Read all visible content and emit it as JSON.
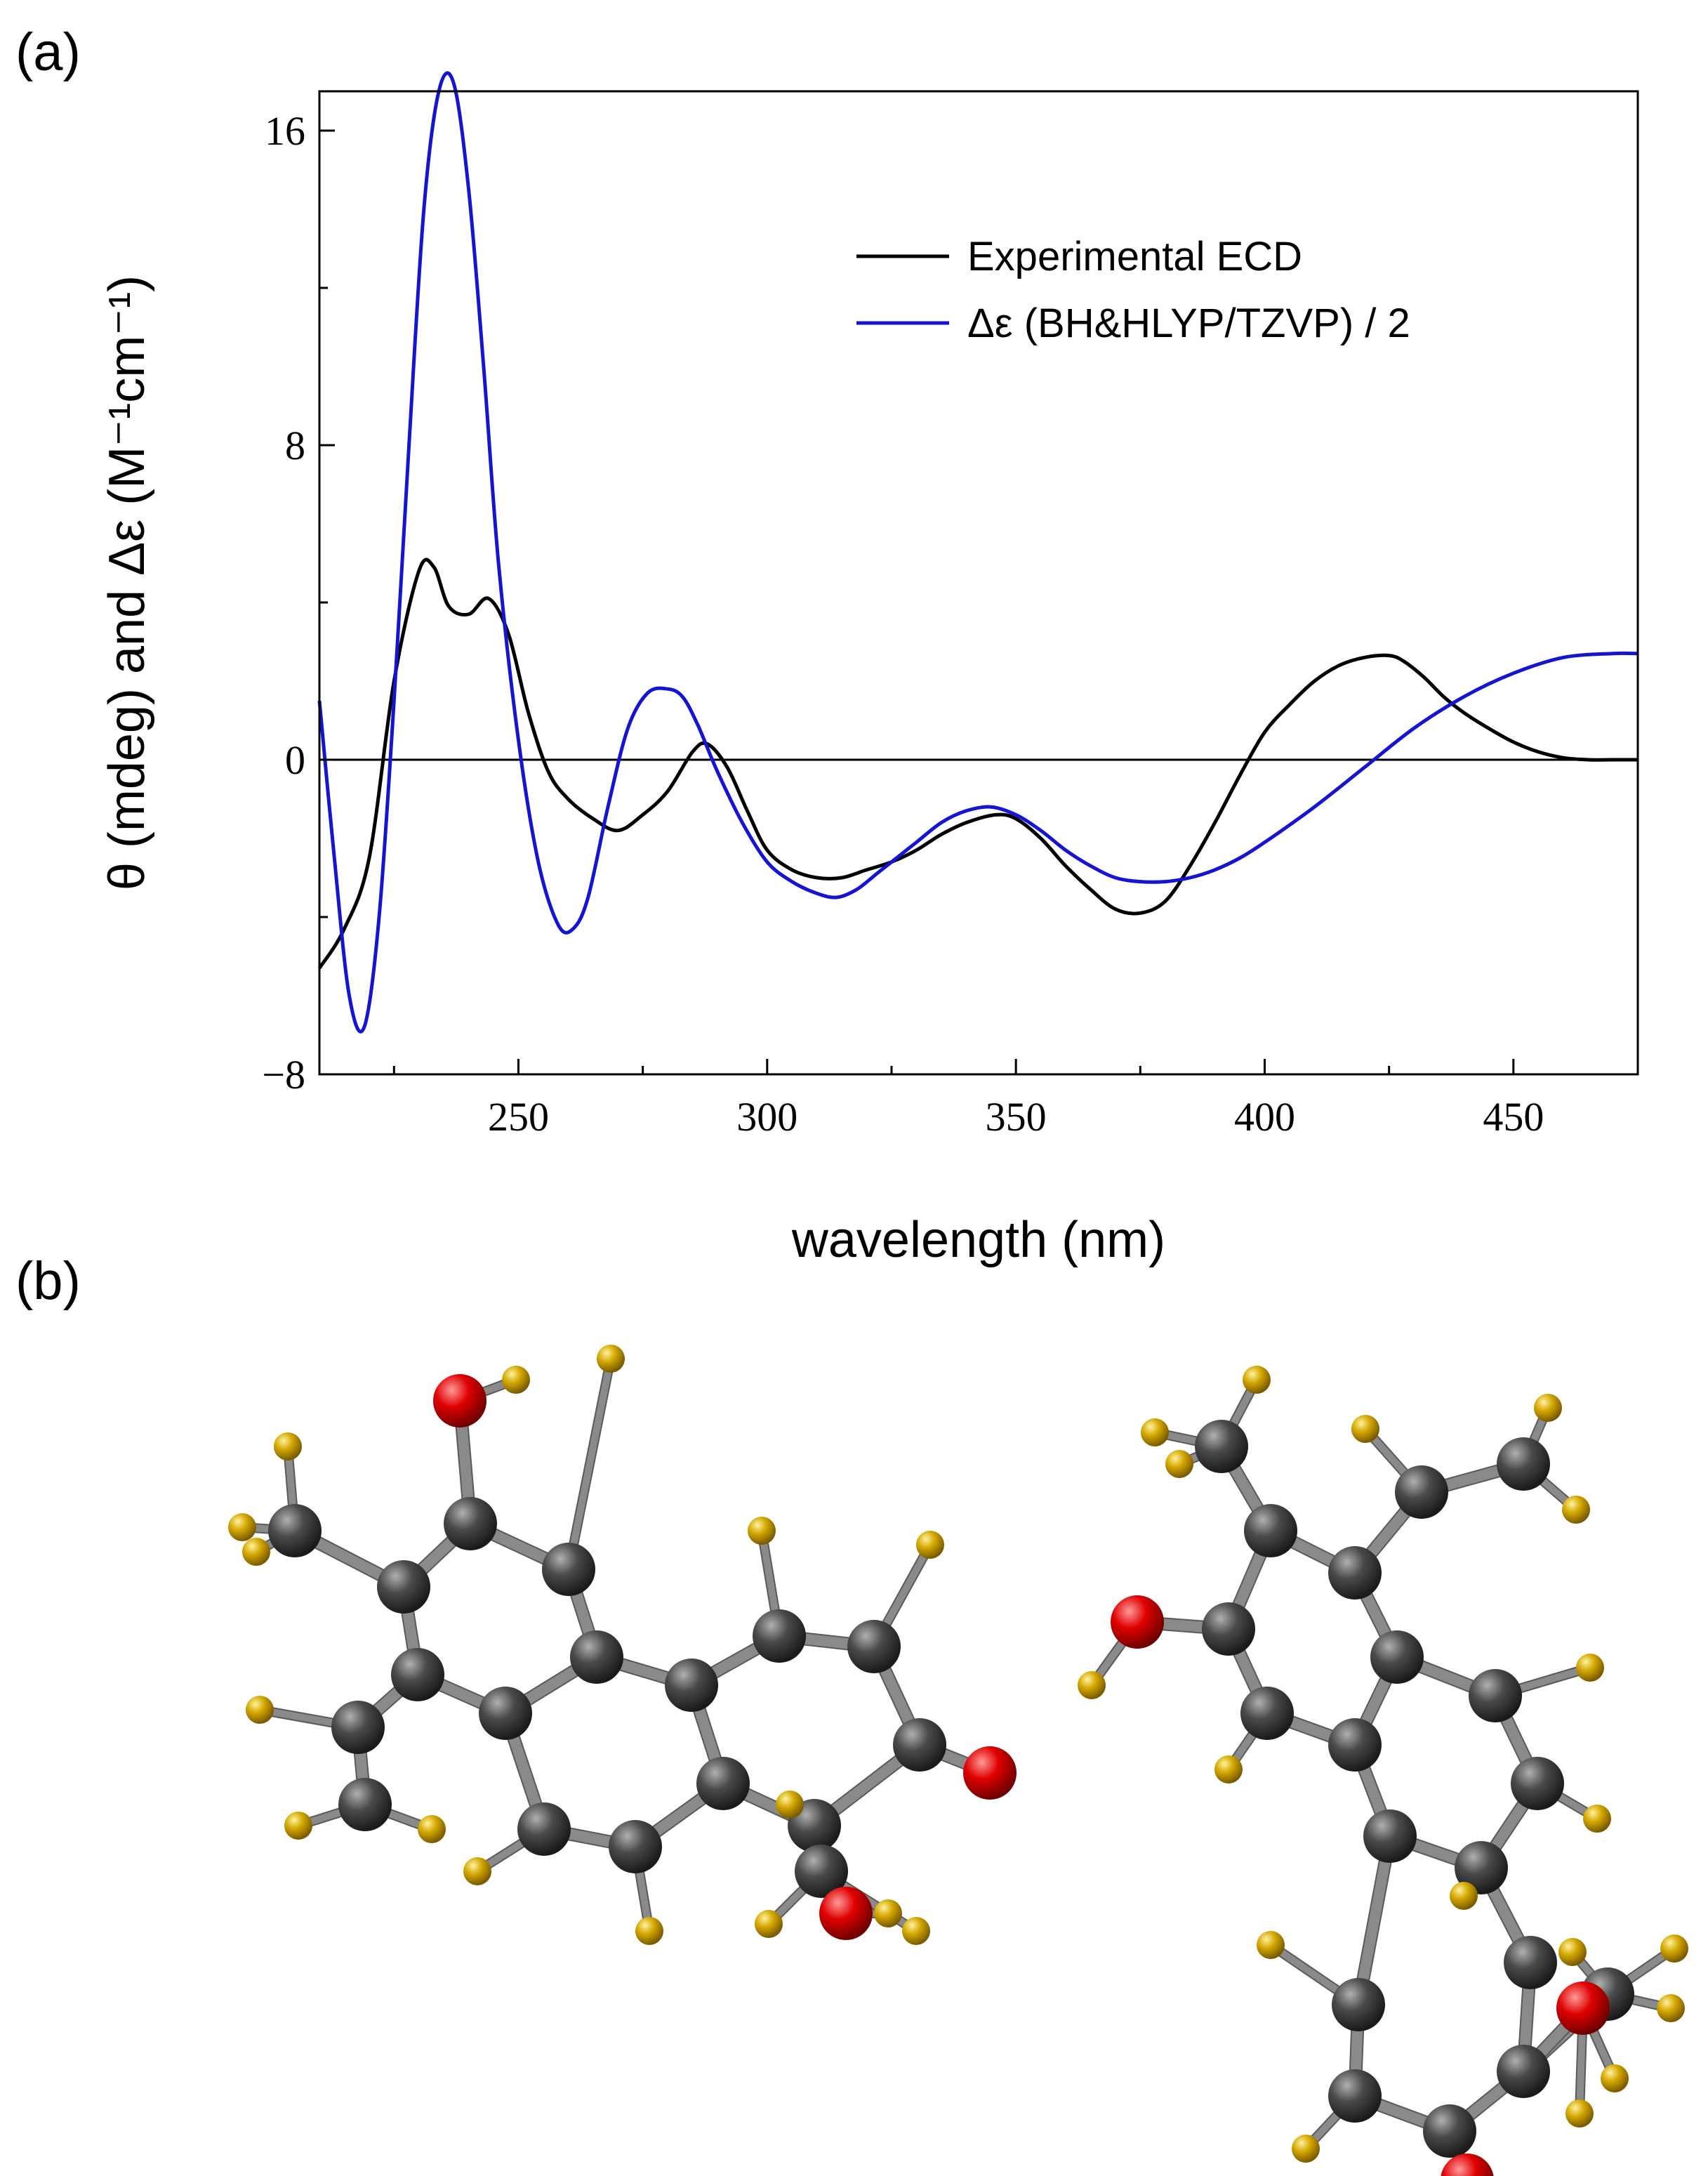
{
  "panels": {
    "a": "(a)",
    "b": "(b)"
  },
  "chart_data": {
    "type": "line",
    "title": "",
    "xlabel": "wavelength (nm)",
    "ylabel": "θ (mdeg) and Δε (M⁻¹cm⁻¹)",
    "xlim": [
      210,
      475
    ],
    "ylim": [
      -8,
      17
    ],
    "xticks": [
      250,
      300,
      350,
      400,
      450
    ],
    "yticks": [
      -8,
      0,
      8,
      16
    ],
    "xtick_labels": [
      "250",
      "300",
      "350",
      "400",
      "450"
    ],
    "ytick_labels": [
      "−8",
      "0",
      "8",
      "16"
    ],
    "zero_line": true,
    "grid": false,
    "legend_position": "top-right",
    "series": [
      {
        "name": "Experimental ECD",
        "color": "#000000",
        "x": [
          210,
          215,
          220,
          225,
          230,
          233,
          236,
          240,
          244,
          248,
          252,
          256,
          260,
          265,
          270,
          275,
          280,
          285,
          288,
          292,
          296,
          300,
          305,
          310,
          315,
          320,
          325,
          330,
          335,
          340,
          346,
          350,
          355,
          360,
          365,
          370,
          375,
          380,
          385,
          390,
          395,
          400,
          405,
          410,
          415,
          420,
          425,
          428,
          432,
          436,
          440,
          445,
          450,
          455,
          460,
          465,
          470,
          475
        ],
        "y": [
          -5.3,
          -4.3,
          -2.5,
          2.0,
          4.8,
          4.9,
          3.9,
          3.7,
          4.1,
          3.2,
          1.2,
          -0.3,
          -1.0,
          -1.5,
          -1.8,
          -1.4,
          -0.8,
          0.2,
          0.4,
          -0.2,
          -1.3,
          -2.3,
          -2.8,
          -3.0,
          -3.0,
          -2.8,
          -2.6,
          -2.3,
          -1.9,
          -1.6,
          -1.4,
          -1.5,
          -2.0,
          -2.7,
          -3.3,
          -3.8,
          -3.9,
          -3.6,
          -2.7,
          -1.6,
          -0.4,
          0.7,
          1.4,
          2.0,
          2.4,
          2.6,
          2.65,
          2.5,
          2.1,
          1.6,
          1.2,
          0.8,
          0.45,
          0.2,
          0.05,
          0.0,
          0.0,
          0.0
        ]
      },
      {
        "name": "Δε (BH&HLYP/TZVP) / 2",
        "color": "#1414d2",
        "x": [
          210,
          213,
          216,
          219,
          222,
          225,
          228,
          231,
          234,
          237,
          240,
          243,
          246,
          250,
          254,
          258,
          261,
          264,
          268,
          272,
          276,
          280,
          283,
          286,
          290,
          295,
          300,
          305,
          310,
          314,
          318,
          322,
          326,
          330,
          335,
          340,
          345,
          350,
          355,
          360,
          365,
          370,
          375,
          380,
          385,
          390,
          395,
          400,
          410,
          420,
          430,
          440,
          450,
          460,
          470,
          475
        ],
        "y": [
          1.5,
          -2.5,
          -6.0,
          -6.8,
          -4.0,
          1.5,
          8.0,
          14.0,
          17.0,
          17.2,
          14.5,
          10.0,
          5.0,
          0.5,
          -2.6,
          -4.2,
          -4.3,
          -3.5,
          -1.2,
          0.8,
          1.7,
          1.8,
          1.6,
          0.9,
          -0.3,
          -1.6,
          -2.6,
          -3.1,
          -3.4,
          -3.5,
          -3.3,
          -2.9,
          -2.5,
          -2.1,
          -1.6,
          -1.3,
          -1.2,
          -1.4,
          -1.8,
          -2.3,
          -2.7,
          -3.0,
          -3.1,
          -3.1,
          -3.0,
          -2.8,
          -2.5,
          -2.1,
          -1.2,
          -0.2,
          0.8,
          1.6,
          2.2,
          2.6,
          2.7,
          2.7
        ]
      }
    ]
  },
  "molecule_colors": {
    "carbon": "#404040",
    "hydrogen": "#c8a000",
    "oxygen": "#d00000",
    "bond": "#8a8a8a"
  }
}
